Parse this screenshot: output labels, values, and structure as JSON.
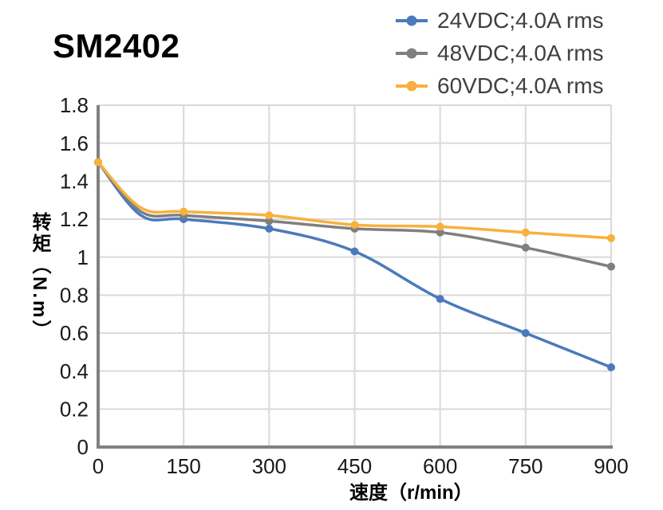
{
  "page": {
    "background": "#FFFFFF"
  },
  "chart_data": {
    "type": "line",
    "title": "SM2402",
    "xlabel": "速度（r/min）",
    "ylabel": "转矩（N.m）",
    "x": [
      0,
      75,
      150,
      300,
      450,
      600,
      750,
      900
    ],
    "marker_x": [
      0,
      150,
      300,
      450,
      600,
      750,
      900
    ],
    "xticks": [
      0,
      150,
      300,
      450,
      600,
      750,
      900
    ],
    "yticks": [
      0,
      0.2,
      0.4,
      0.6,
      0.8,
      1,
      1.2,
      1.4,
      1.6,
      1.8
    ],
    "ytick_labels": [
      "0",
      "0.2",
      "0.4",
      "0.6",
      "0.8",
      "1",
      "1.2",
      "1.4",
      "1.6",
      "1.8"
    ],
    "xlim": [
      0,
      900
    ],
    "ylim": [
      0,
      1.8
    ],
    "grid": true,
    "smooth_lines": true,
    "legend_position": "top-right",
    "series": [
      {
        "name": "24VDC;4.0A rms",
        "color": "#4A7ABC",
        "values": [
          1.5,
          1.22,
          1.2,
          1.15,
          1.03,
          0.78,
          0.6,
          0.42
        ]
      },
      {
        "name": "48VDC;4.0A rms",
        "color": "#7F7F7F",
        "values": [
          1.5,
          1.24,
          1.22,
          1.19,
          1.15,
          1.13,
          1.05,
          0.95
        ]
      },
      {
        "name": "60VDC;4.0A rms",
        "color": "#F7B13E",
        "values": [
          1.5,
          1.26,
          1.24,
          1.22,
          1.17,
          1.16,
          1.13,
          1.1
        ]
      }
    ],
    "colors": {
      "grid": "#D9D9D9",
      "axis": "#808080",
      "tick_text": "#1A1A1A",
      "legend_text": "#404040",
      "title_text": "#000000"
    }
  }
}
